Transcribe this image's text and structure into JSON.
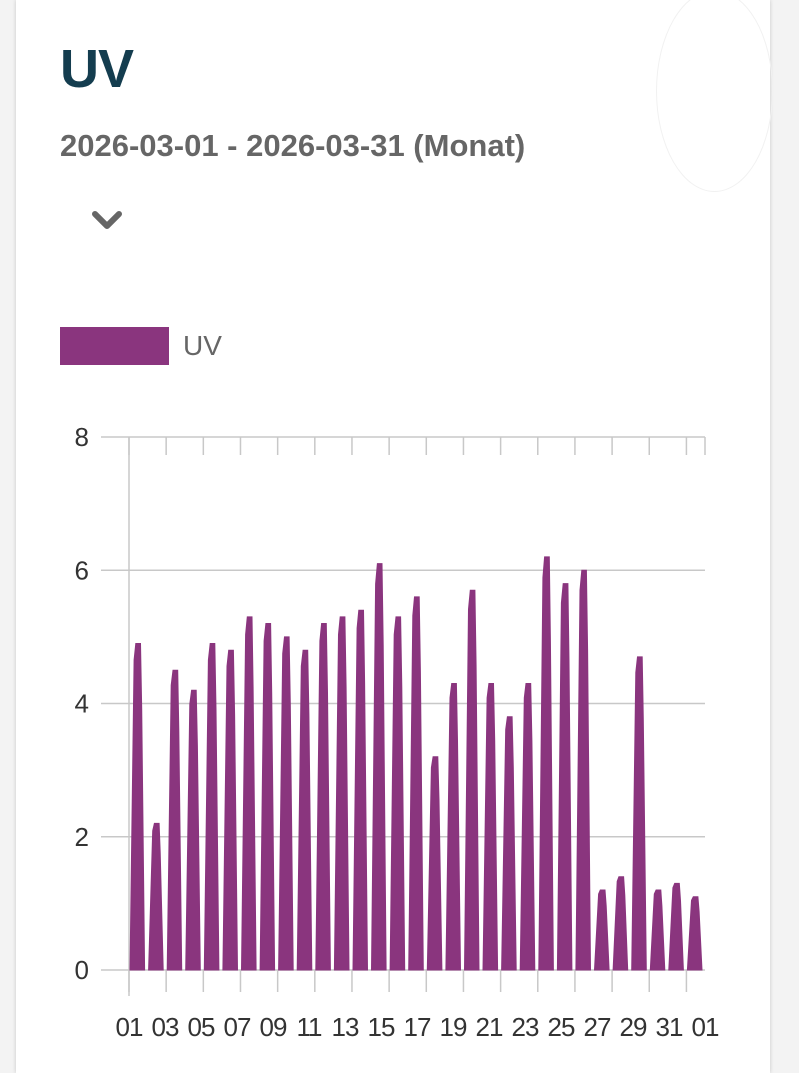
{
  "card": {
    "title": "UV",
    "subtitle": "2026-03-01 - 2026-03-31 (Monat)",
    "expand_icon": "chevron-down-icon"
  },
  "colors": {
    "series": "#8a357e",
    "title": "#143d4f",
    "text": "#666666",
    "grid": "#c8c8c8",
    "axis_text": "#333333"
  },
  "chart_data": {
    "type": "area",
    "title": "",
    "xlabel": "",
    "ylabel": "",
    "ylim": [
      0,
      8
    ],
    "yticks": [
      0,
      2,
      4,
      6,
      8
    ],
    "grid": true,
    "legend_position": "top-left",
    "x_tick_labels": [
      "01",
      "03",
      "05",
      "07",
      "09",
      "11",
      "13",
      "15",
      "17",
      "19",
      "21",
      "23",
      "25",
      "27",
      "29",
      "31",
      "01"
    ],
    "series": [
      {
        "name": "UV",
        "daily_peak_dates": [
          "2026-03-01",
          "2026-03-02",
          "2026-03-03",
          "2026-03-04",
          "2026-03-05",
          "2026-03-06",
          "2026-03-07",
          "2026-03-08",
          "2026-03-09",
          "2026-03-10",
          "2026-03-11",
          "2026-03-12",
          "2026-03-13",
          "2026-03-14",
          "2026-03-15",
          "2026-03-16",
          "2026-03-17",
          "2026-03-18",
          "2026-03-19",
          "2026-03-20",
          "2026-03-21",
          "2026-03-22",
          "2026-03-23",
          "2026-03-24",
          "2026-03-25",
          "2026-03-26",
          "2026-03-27",
          "2026-03-28",
          "2026-03-29",
          "2026-03-30",
          "2026-03-31"
        ],
        "daily_peak_values": [
          4.9,
          2.2,
          4.5,
          4.2,
          4.9,
          4.8,
          5.3,
          5.2,
          5.0,
          4.8,
          5.2,
          5.3,
          5.4,
          6.1,
          5.3,
          5.6,
          3.2,
          4.3,
          5.7,
          4.3,
          3.8,
          4.3,
          6.2,
          5.8,
          6.0,
          1.2,
          1.4,
          4.7,
          1.2,
          1.3,
          1.1
        ]
      }
    ]
  }
}
